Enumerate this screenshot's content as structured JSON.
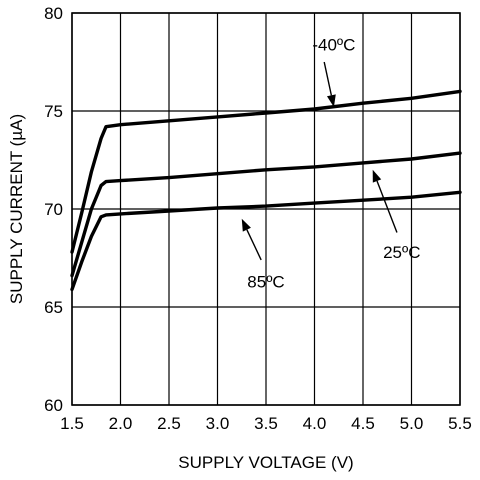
{
  "chart_data": {
    "type": "line",
    "title": "",
    "xlabel": "SUPPLY VOLTAGE (V)",
    "ylabel": "SUPPLY CURRENT (µA)",
    "xlim": [
      1.5,
      5.5
    ],
    "ylim": [
      60,
      80
    ],
    "xticks": [
      1.5,
      2.0,
      2.5,
      3.0,
      3.5,
      4.0,
      4.5,
      5.0,
      5.5
    ],
    "xtick_labels": [
      "1.5",
      "2.0",
      "2.5",
      "3.0",
      "3.5",
      "4.0",
      "4.5",
      "5.0",
      "5.5"
    ],
    "yticks": [
      60,
      65,
      70,
      75,
      80
    ],
    "ytick_labels": [
      "60",
      "65",
      "70",
      "75",
      "80"
    ],
    "grid": true,
    "legend": "none",
    "series": [
      {
        "name": "-40ºC",
        "x": [
          1.5,
          1.6,
          1.7,
          1.8,
          1.85,
          2.0,
          2.5,
          3.0,
          3.5,
          4.0,
          4.5,
          5.0,
          5.5
        ],
        "y": [
          67.8,
          69.8,
          71.9,
          73.6,
          74.2,
          74.3,
          74.5,
          74.7,
          74.9,
          75.1,
          75.4,
          75.65,
          76.0
        ]
      },
      {
        "name": "25ºC",
        "x": [
          1.5,
          1.6,
          1.7,
          1.8,
          1.85,
          2.0,
          2.5,
          3.0,
          3.5,
          4.0,
          4.5,
          5.0,
          5.5
        ],
        "y": [
          66.6,
          68.3,
          70.0,
          71.2,
          71.4,
          71.45,
          71.6,
          71.8,
          72.0,
          72.15,
          72.35,
          72.55,
          72.85
        ]
      },
      {
        "name": "85ºC",
        "x": [
          1.5,
          1.6,
          1.7,
          1.8,
          1.85,
          2.0,
          2.5,
          3.0,
          3.5,
          4.0,
          4.5,
          5.0,
          5.5
        ],
        "y": [
          65.9,
          67.3,
          68.6,
          69.6,
          69.7,
          69.75,
          69.9,
          70.05,
          70.15,
          70.3,
          70.45,
          70.6,
          70.85
        ]
      }
    ],
    "annotations": [
      {
        "text": "-40ºC",
        "series": 0,
        "label_at": [
          4.2,
          78.4
        ],
        "arrow_to": [
          4.2,
          75.2
        ],
        "arrow_from": [
          4.1,
          77.5
        ]
      },
      {
        "text": "25ºC",
        "series": 1,
        "label_at": [
          4.9,
          67.8
        ],
        "arrow_to": [
          4.6,
          72.0
        ],
        "arrow_from": [
          4.85,
          68.8
        ]
      },
      {
        "text": "85ºC",
        "series": 2,
        "label_at": [
          3.5,
          66.3
        ],
        "arrow_to": [
          3.25,
          69.5
        ],
        "arrow_from": [
          3.45,
          67.4
        ]
      }
    ]
  }
}
